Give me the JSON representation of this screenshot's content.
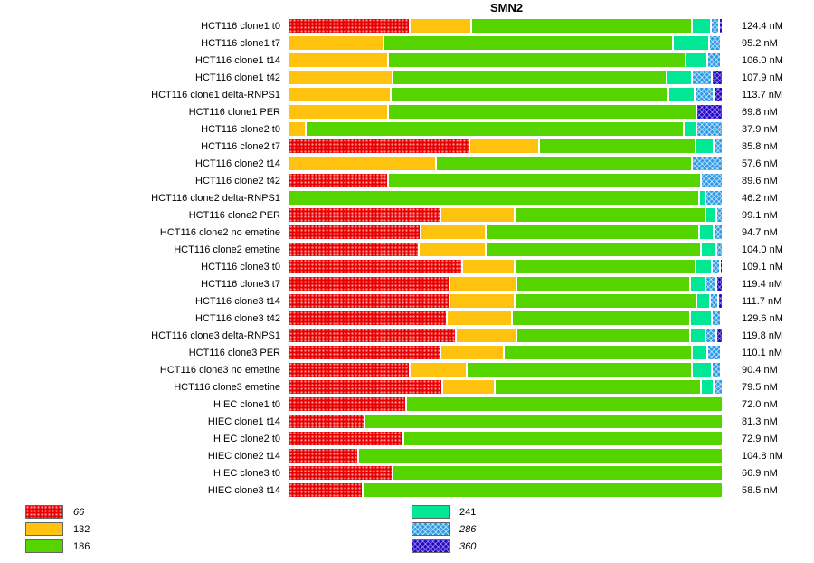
{
  "chart_data": {
    "type": "bar",
    "orientation": "horizontal",
    "stacked": true,
    "normalized_percent": true,
    "title": "SMN2",
    "value_unit": "nM",
    "series_names": [
      "66",
      "132",
      "186",
      "241",
      "286",
      "360"
    ],
    "series_colors": {
      "66": "#E90000",
      "132": "#FFC20E",
      "186": "#55D400",
      "241": "#00E896",
      "286": "#2F9BE8",
      "360": "#2408C8"
    },
    "series_patterns": {
      "66": "dots",
      "132": "solid",
      "186": "solid",
      "241": "solid",
      "286": "crosshatch",
      "360": "crosshatch"
    },
    "rows": [
      {
        "label": "HCT116 clone1 t0",
        "values": [
          28,
          14,
          51,
          4.4,
          1.7,
          0.9
        ],
        "annotation": "124.4 nM"
      },
      {
        "label": "HCT116 clone1 t7",
        "values": [
          0,
          22,
          66.7,
          8.3,
          2.7,
          0.3
        ],
        "annotation": "95.2 nM"
      },
      {
        "label": "HCT116 clone1 t14",
        "values": [
          0,
          23,
          68.5,
          5,
          3,
          0.5
        ],
        "annotation": "106.0 nM"
      },
      {
        "label": "HCT116 clone1 t42",
        "values": [
          0,
          24,
          63,
          6,
          4.5,
          2.5
        ],
        "annotation": "107.9 nM"
      },
      {
        "label": "HCT116 clone1 delta-RNPS1",
        "values": [
          0,
          23.5,
          64,
          6,
          4.5,
          2
        ],
        "annotation": "113.7 nM"
      },
      {
        "label": "HCT116 clone1 PER",
        "values": [
          0,
          23,
          71,
          0,
          0,
          6
        ],
        "annotation": "69.8 nM"
      },
      {
        "label": "HCT116 clone2 t0",
        "values": [
          0,
          4,
          87,
          3,
          6,
          0
        ],
        "annotation": "37.9 nM"
      },
      {
        "label": "HCT116 clone2 t7",
        "values": [
          41.7,
          16,
          36,
          4.2,
          2.1,
          0
        ],
        "annotation": "85.8 nM"
      },
      {
        "label": "HCT116 clone2 t14",
        "values": [
          0,
          34,
          59,
          0,
          7,
          0
        ],
        "annotation": "57.6 nM"
      },
      {
        "label": "HCT116 clone2 t42",
        "values": [
          23,
          0,
          72,
          0,
          5,
          0
        ],
        "annotation": "89.6 nM"
      },
      {
        "label": "HCT116 clone2 delta-RNPS1",
        "values": [
          0,
          0,
          94.5,
          1.5,
          4,
          0
        ],
        "annotation": "46.2 nM"
      },
      {
        "label": "HCT116 clone2 PER",
        "values": [
          35,
          17,
          44,
          2.5,
          1.5,
          0
        ],
        "annotation": "99.1 nM"
      },
      {
        "label": "HCT116 clone2 no emetine",
        "values": [
          30.5,
          15,
          49,
          3.5,
          2,
          0
        ],
        "annotation": "94.7 nM"
      },
      {
        "label": "HCT116 clone2 emetine",
        "values": [
          30,
          15.5,
          49.5,
          3.5,
          1.5,
          0
        ],
        "annotation": "104.0 nM"
      },
      {
        "label": "HCT116 clone3 t0",
        "values": [
          40,
          12,
          41.7,
          3.7,
          1.9,
          0.7
        ],
        "annotation": "109.1 nM"
      },
      {
        "label": "HCT116 clone3 t7",
        "values": [
          37,
          15.5,
          40,
          3.5,
          2.5,
          1.5
        ],
        "annotation": "119.4 nM"
      },
      {
        "label": "HCT116 clone3 t14",
        "values": [
          37,
          15,
          42,
          3,
          2,
          1
        ],
        "annotation": "111.7 nM"
      },
      {
        "label": "HCT116 clone3 t42",
        "values": [
          36.5,
          15,
          41,
          5,
          2,
          0.5
        ],
        "annotation": "129.6 nM"
      },
      {
        "label": "HCT116 clone3 delta-RNPS1",
        "values": [
          38.5,
          14,
          40,
          3.5,
          2.5,
          1.5
        ],
        "annotation": "119.8 nM"
      },
      {
        "label": "HCT116 clone3 PER",
        "values": [
          35,
          14.5,
          43.5,
          3.5,
          3,
          0.5
        ],
        "annotation": "110.1 nM"
      },
      {
        "label": "HCT116 clone3 no emetine",
        "values": [
          28,
          13,
          52,
          4.5,
          2,
          0.5
        ],
        "annotation": "90.4 nM"
      },
      {
        "label": "HCT116 clone3 emetine",
        "values": [
          35.5,
          12,
          47.5,
          3,
          2,
          0
        ],
        "annotation": "79.5 nM"
      },
      {
        "label": "HIEC clone1 t0",
        "values": [
          27,
          0,
          73,
          0,
          0,
          0
        ],
        "annotation": "72.0 nM"
      },
      {
        "label": "HIEC clone1 t14",
        "values": [
          17.5,
          0,
          82.5,
          0,
          0,
          0
        ],
        "annotation": "81.3 nM"
      },
      {
        "label": "HIEC clone2 t0",
        "values": [
          26.5,
          0,
          73.5,
          0,
          0,
          0
        ],
        "annotation": "72.9 nM"
      },
      {
        "label": "HIEC clone2 t14",
        "values": [
          16,
          0,
          84,
          0,
          0,
          0
        ],
        "annotation": "104.8 nM"
      },
      {
        "label": "HIEC clone3 t0",
        "values": [
          24,
          0,
          76,
          0,
          0,
          0
        ],
        "annotation": "66.9 nM"
      },
      {
        "label": "HIEC clone3 t14",
        "values": [
          17,
          0,
          83,
          0,
          0,
          0
        ],
        "annotation": "58.5 nM"
      }
    ],
    "legend": {
      "groups": [
        {
          "items": [
            {
              "label": "66",
              "series": "66",
              "italic": true
            },
            {
              "label": "132",
              "series": "132",
              "italic": false
            },
            {
              "label": "186",
              "series": "186",
              "italic": false
            }
          ]
        },
        {
          "items": [
            {
              "label": "241",
              "series": "241",
              "italic": false
            },
            {
              "label": "286",
              "series": "286",
              "italic": true
            },
            {
              "label": "360",
              "series": "360",
              "italic": true
            }
          ]
        }
      ]
    }
  }
}
